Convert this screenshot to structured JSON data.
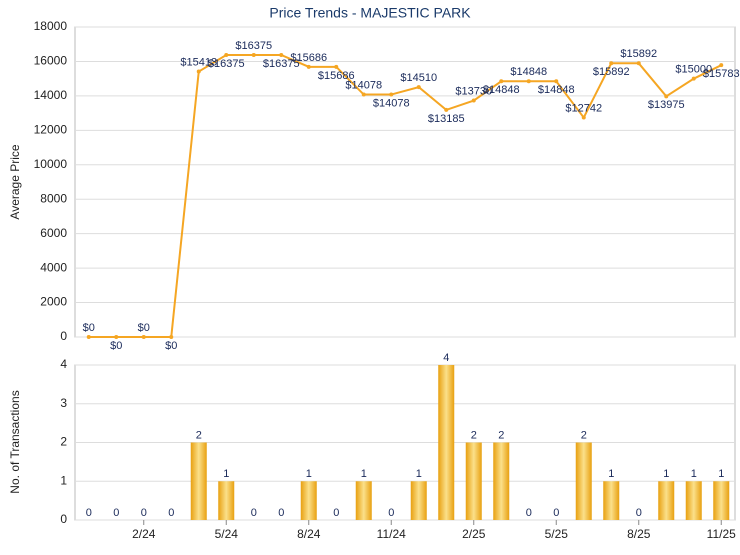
{
  "chart_data": [
    {
      "type": "line",
      "title": "Price Trends - MAJESTIC PARK",
      "y_label": "Average Price",
      "color": "#f5a623",
      "values": [
        0,
        0,
        0,
        0,
        15413,
        16375,
        16375,
        16375,
        15686,
        15686,
        14078,
        14078,
        14510,
        13185,
        13730,
        14848,
        14848,
        14848,
        12742,
        15892,
        15892,
        13975,
        15000,
        15783
      ],
      "value_labels": [
        "$0",
        "$0",
        "$0",
        "$0",
        "$15413",
        "$16375",
        "$16375",
        "$16375",
        "$15686",
        "$15686",
        "$14078",
        "$14078",
        "$14510",
        "$13185",
        "$13730",
        "$14848",
        "$14848",
        "$14848",
        "$12742",
        "$15892",
        "$15892",
        "$13975",
        "$15000",
        "$15783"
      ],
      "ylim": [
        0,
        18000
      ],
      "yticks": [
        0,
        2000,
        4000,
        6000,
        8000,
        10000,
        12000,
        14000,
        16000,
        18000
      ],
      "grid": true
    },
    {
      "type": "bar",
      "y_label": "No. of Transactions",
      "color": "#f0b428",
      "categories": [
        null,
        null,
        "2/24",
        null,
        null,
        "5/24",
        null,
        null,
        "8/24",
        null,
        null,
        "11/24",
        null,
        null,
        "2/25",
        null,
        null,
        "5/25",
        null,
        null,
        "8/25",
        null,
        null,
        "11/25"
      ],
      "values": [
        0,
        0,
        0,
        0,
        2,
        1,
        0,
        0,
        1,
        0,
        1,
        0,
        1,
        4,
        2,
        2,
        0,
        0,
        2,
        1,
        0,
        1,
        1,
        1
      ],
      "ylim": [
        0,
        4
      ],
      "yticks": [
        0,
        1,
        2,
        3,
        4
      ],
      "grid": true
    }
  ]
}
